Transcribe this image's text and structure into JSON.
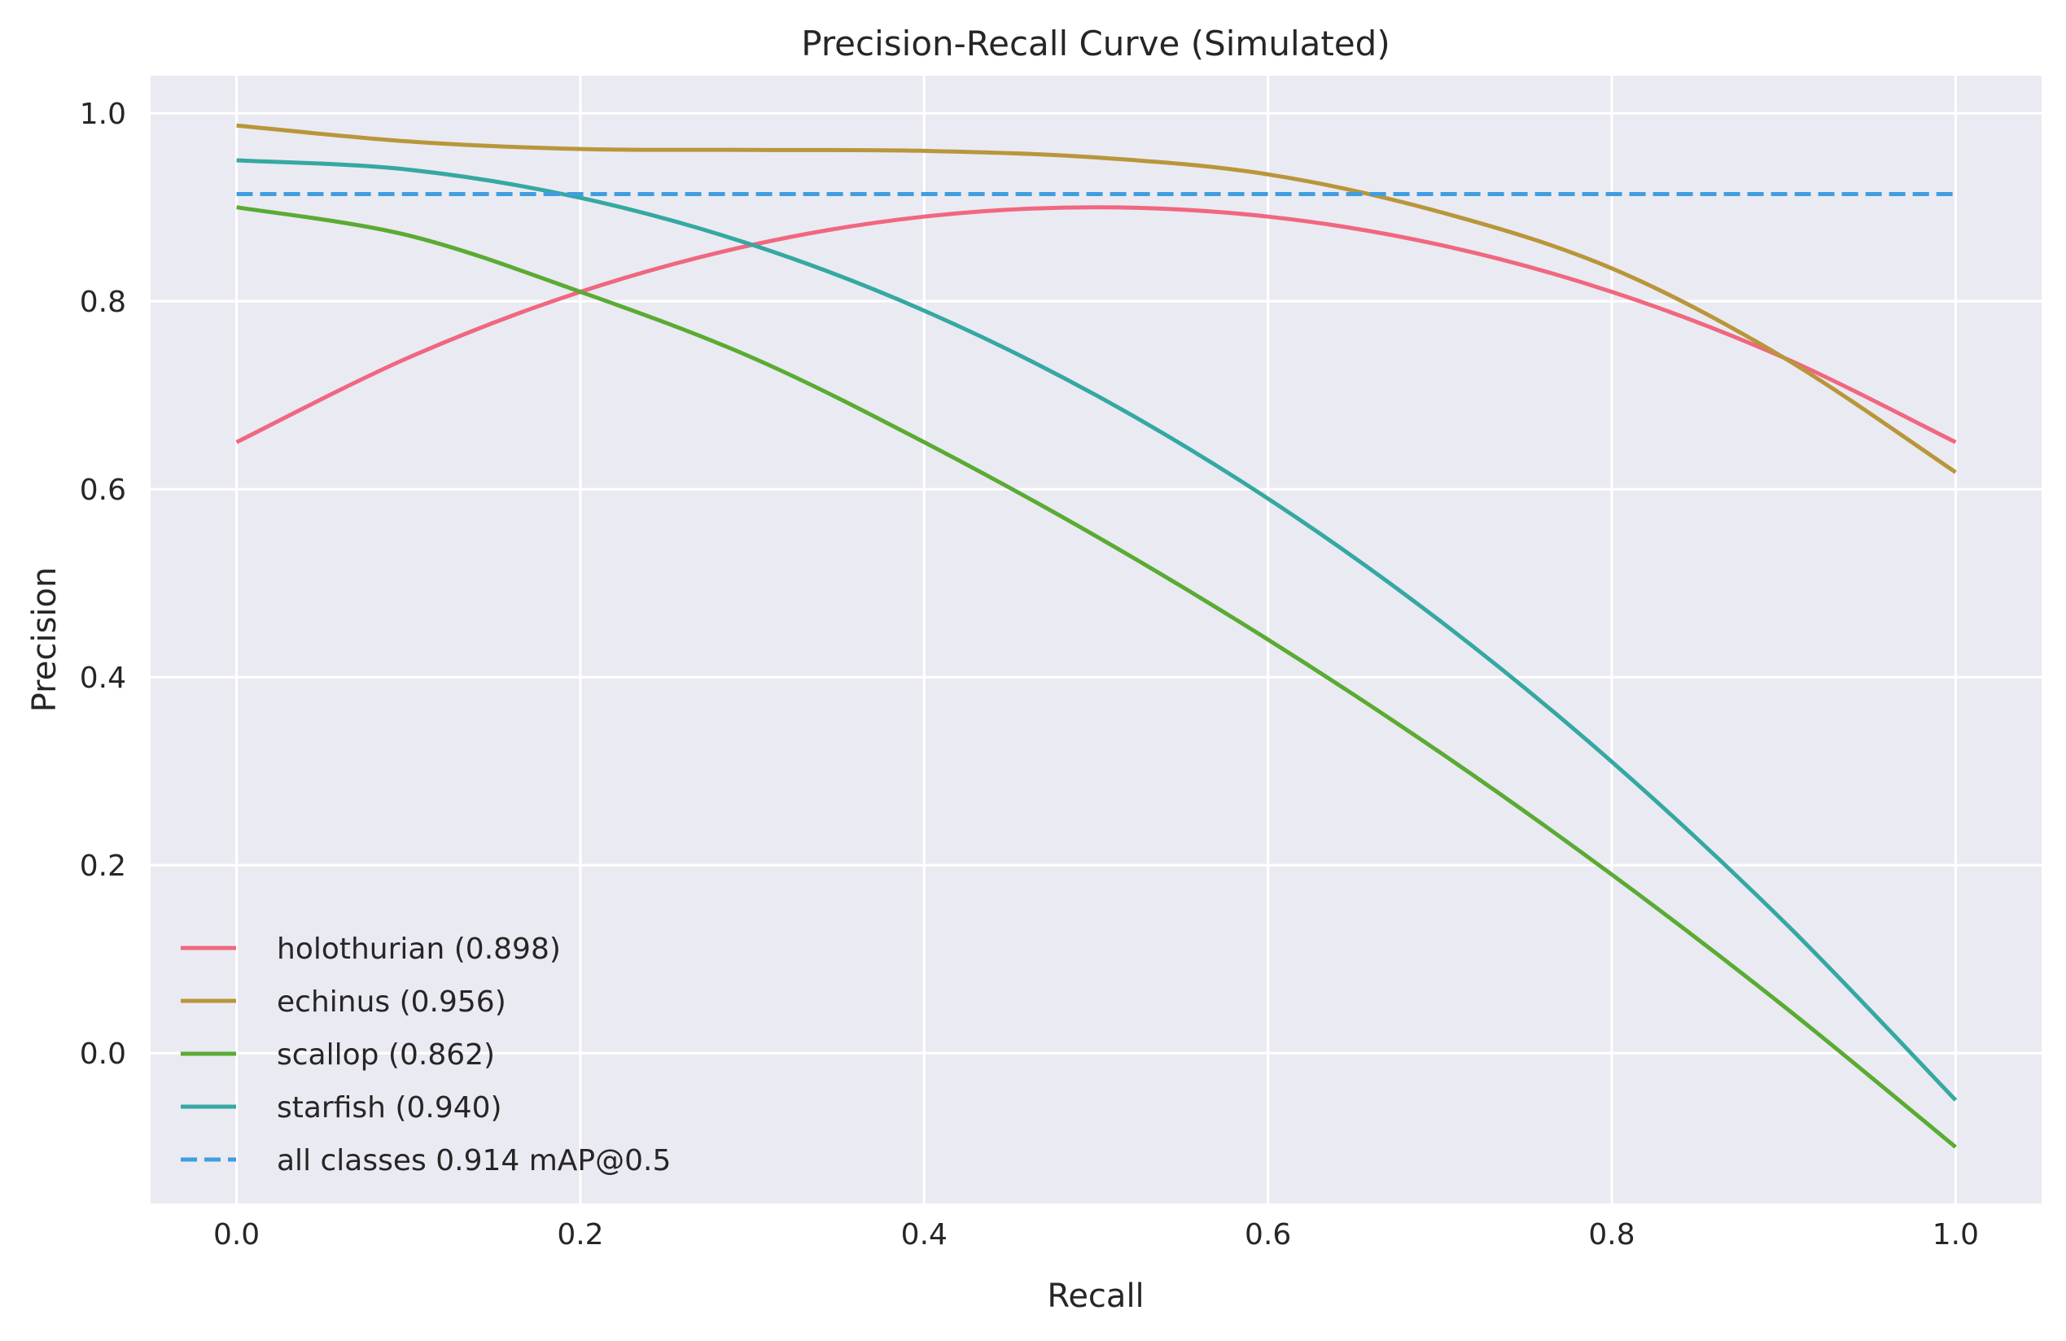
{
  "chart_data": {
    "type": "line",
    "title": "Precision-Recall Curve (Simulated)",
    "xlabel": "Recall",
    "ylabel": "Precision",
    "xlim": [
      -0.05,
      1.05
    ],
    "ylim": [
      -0.16,
      1.04
    ],
    "grid": true,
    "legend_position": "lower-left",
    "xticks": [
      0.0,
      0.2,
      0.4,
      0.6,
      0.8,
      1.0
    ],
    "xtick_labels": [
      "0.0",
      "0.2",
      "0.4",
      "0.6",
      "0.8",
      "1.0"
    ],
    "yticks": [
      0.0,
      0.2,
      0.4,
      0.6,
      0.8,
      1.0
    ],
    "ytick_labels": [
      "0.0",
      "0.2",
      "0.4",
      "0.6",
      "0.8",
      "1.0"
    ],
    "x": [
      0.0,
      0.1,
      0.2,
      0.3,
      0.4,
      0.5,
      0.6,
      0.7,
      0.8,
      0.9,
      1.0
    ],
    "series": [
      {
        "name": "holothurian (0.898)",
        "color": "#f0677f",
        "style": "solid",
        "values": [
          0.65,
          0.74,
          0.81,
          0.86,
          0.89,
          0.9,
          0.89,
          0.86,
          0.81,
          0.74,
          0.65
        ]
      },
      {
        "name": "echinus (0.956)",
        "color": "#b8963a",
        "style": "solid",
        "values": [
          0.987,
          0.97,
          0.962,
          0.961,
          0.96,
          0.953,
          0.935,
          0.895,
          0.835,
          0.74,
          0.618
        ]
      },
      {
        "name": "scallop (0.862)",
        "color": "#5aab33",
        "style": "solid",
        "values": [
          0.9,
          0.87,
          0.81,
          0.74,
          0.65,
          0.55,
          0.44,
          0.32,
          0.19,
          0.05,
          -0.1
        ]
      },
      {
        "name": "starfish (0.940)",
        "color": "#35a8a3",
        "style": "solid",
        "values": [
          0.95,
          0.94,
          0.91,
          0.86,
          0.79,
          0.7,
          0.59,
          0.46,
          0.31,
          0.14,
          -0.05
        ]
      },
      {
        "name": "all classes 0.914 mAP@0.5",
        "color": "#3f9de0",
        "style": "dashed",
        "values": [
          0.914,
          0.914,
          0.914,
          0.914,
          0.914,
          0.914,
          0.914,
          0.914,
          0.914,
          0.914,
          0.914
        ]
      }
    ]
  }
}
